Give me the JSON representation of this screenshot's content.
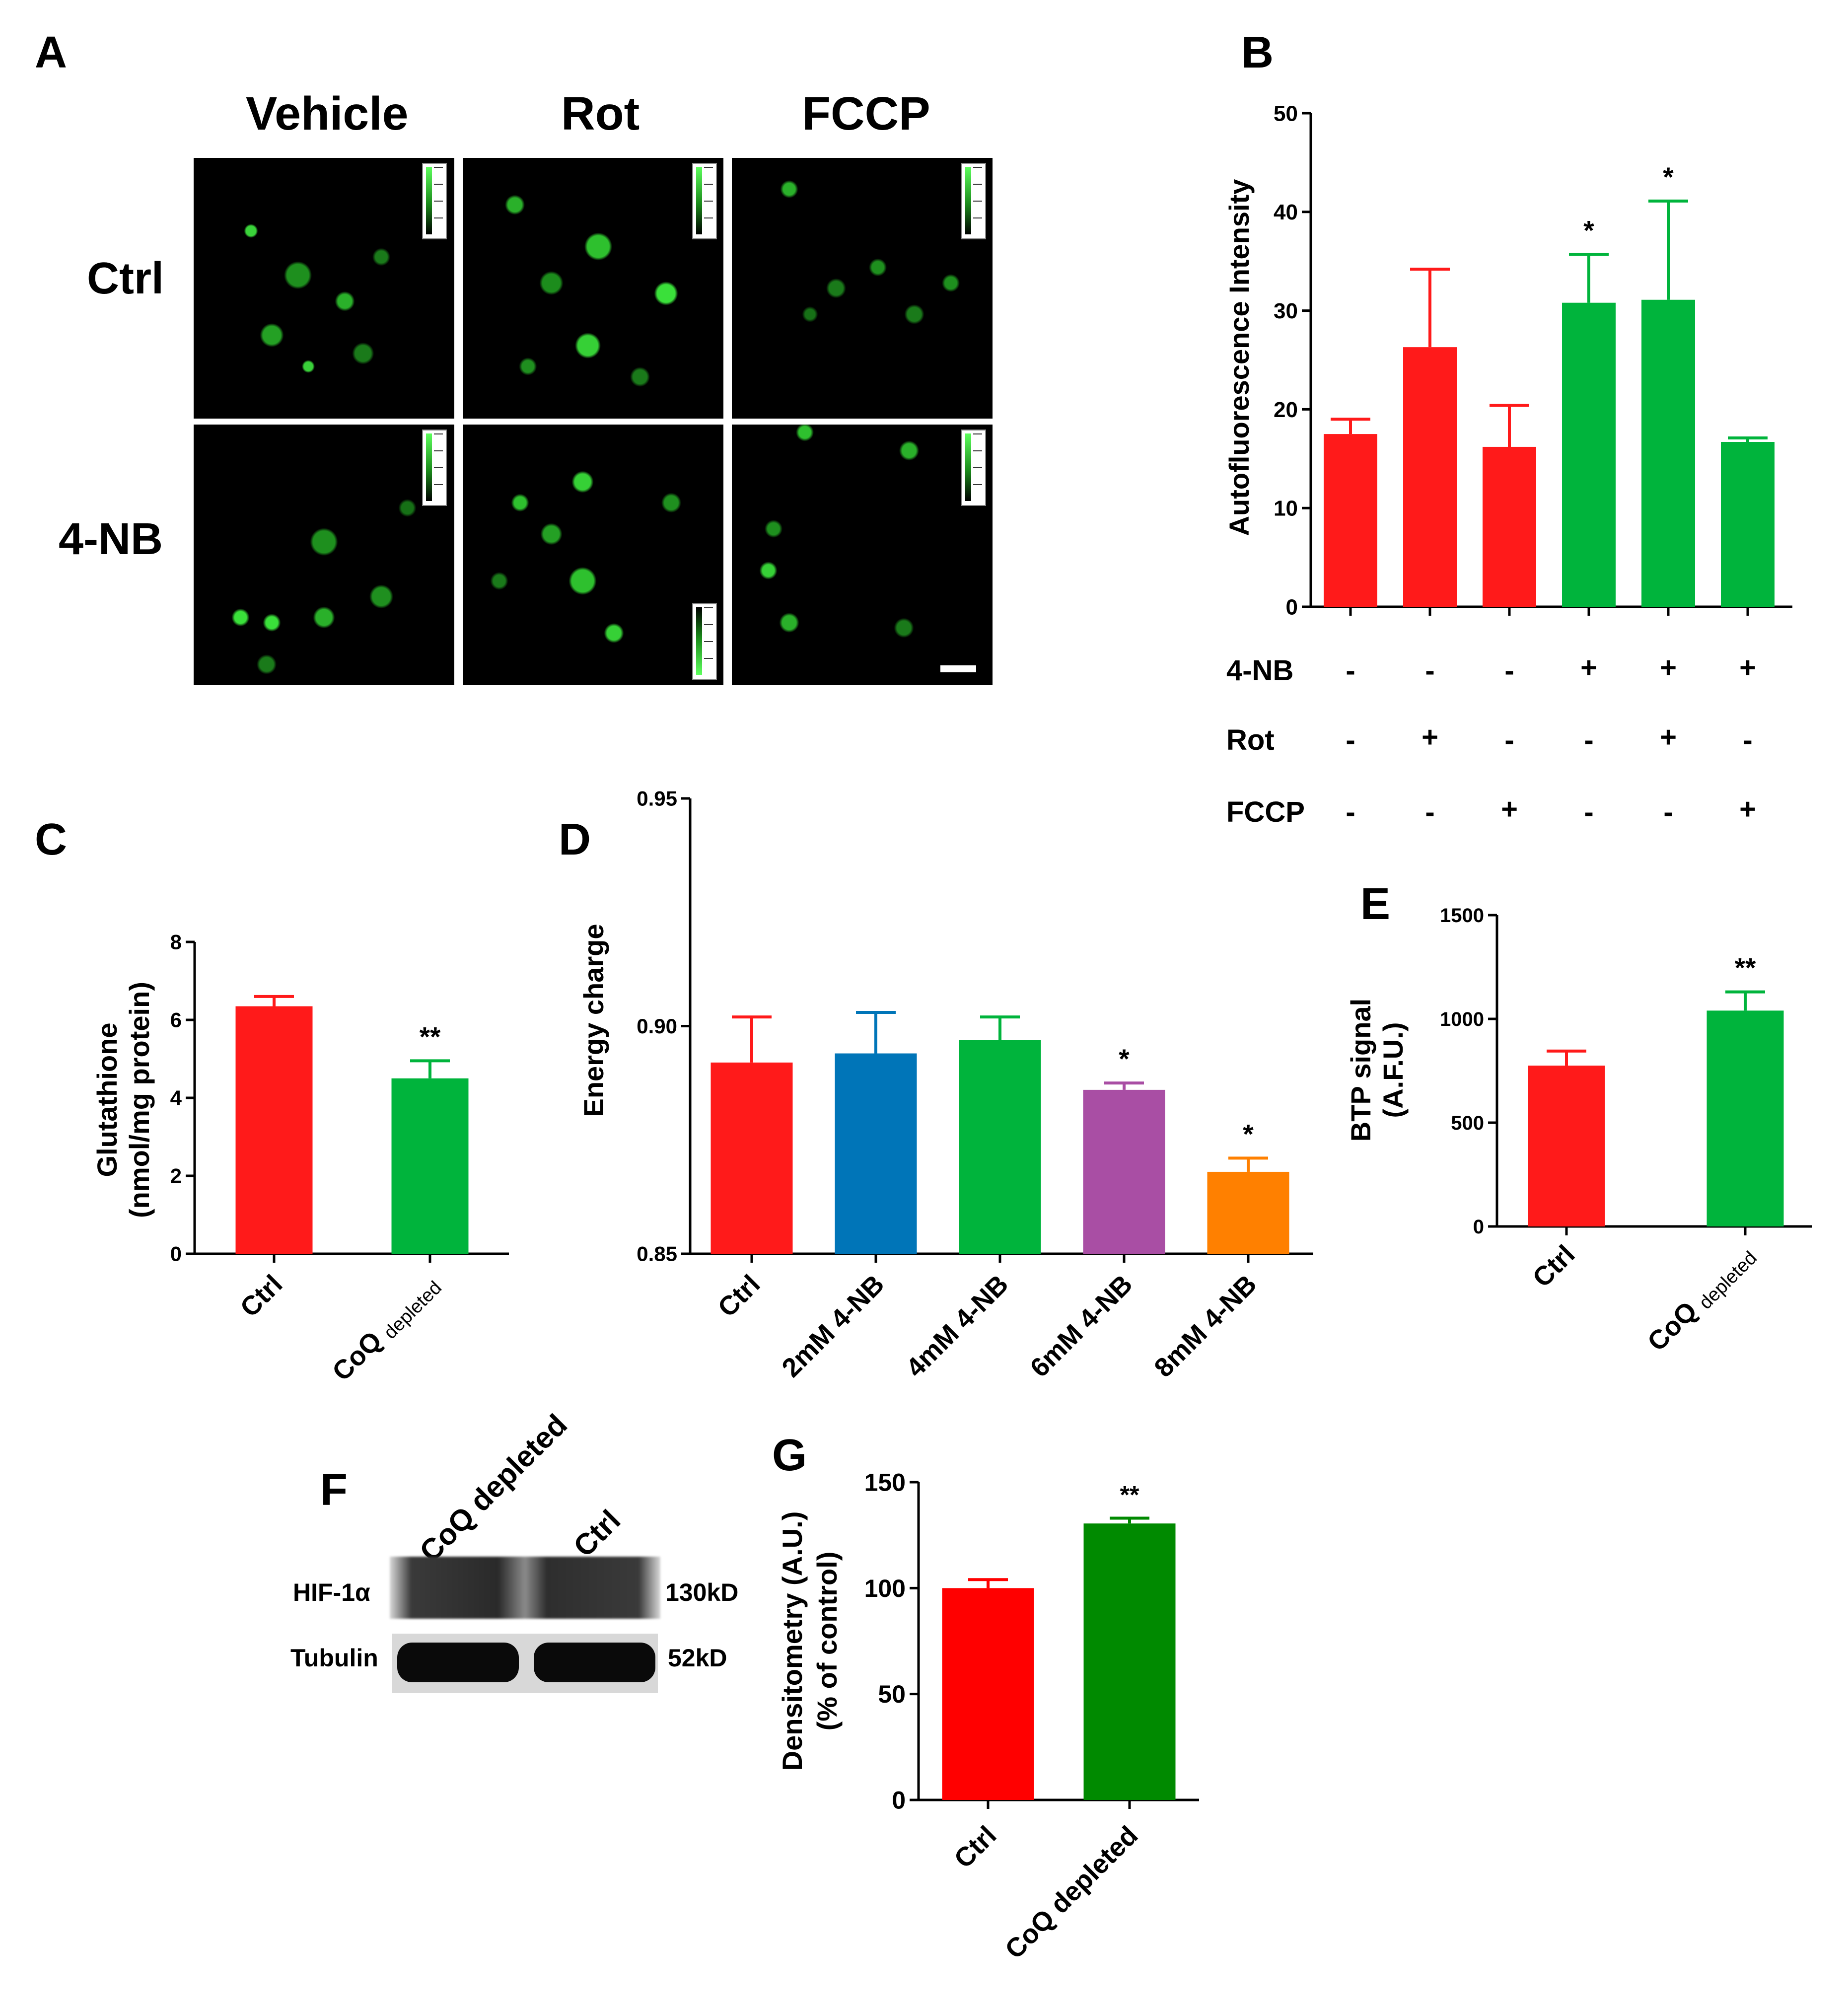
{
  "panels": {
    "A": "A",
    "B": "B",
    "C": "C",
    "D": "D",
    "E": "E",
    "F": "F",
    "G": "G"
  },
  "panel_a": {
    "columns": [
      "Vehicle",
      "Rot",
      "FCCP"
    ],
    "rows": [
      "Ctrl",
      "4-NB"
    ]
  },
  "panel_b_conditions": {
    "row_labels": [
      "4-NB",
      "Rot",
      "FCCP"
    ],
    "signs": [
      [
        "-",
        "-",
        "-",
        "+",
        "+",
        "+"
      ],
      [
        "-",
        "+",
        "-",
        "-",
        "+",
        "-"
      ],
      [
        "-",
        "-",
        "+",
        "-",
        "-",
        "+"
      ]
    ]
  },
  "panel_f": {
    "lane_labels": [
      "CoQ depleted",
      "Ctrl"
    ],
    "bands": [
      "HIF-1α",
      "Tubulin"
    ],
    "sizes": [
      "130kD",
      "52kD"
    ]
  },
  "chart_data": [
    {
      "panel": "B",
      "type": "bar",
      "ylabel": "Autofluorescence Intensity",
      "ylim": [
        0,
        50
      ],
      "yticks": [
        0,
        10,
        20,
        30,
        40,
        50
      ],
      "values": [
        17.5,
        26.3,
        16.2,
        30.8,
        31.1,
        16.7
      ],
      "errors": [
        1.5,
        7.9,
        4.2,
        4.9,
        10.0,
        0.4
      ],
      "colors": [
        "#ff1a1a",
        "#ff1a1a",
        "#ff1a1a",
        "#00b43c",
        "#00b43c",
        "#00b43c"
      ],
      "significance": [
        "",
        "",
        "",
        "*",
        "*",
        ""
      ]
    },
    {
      "panel": "C",
      "type": "bar",
      "categories": [
        "Ctrl",
        "CoQ depleted"
      ],
      "ylabel": "Glutathione",
      "ylabel2": "(nmol/mg protein)",
      "ylim": [
        0,
        8
      ],
      "yticks": [
        0,
        2,
        4,
        6,
        8
      ],
      "values": [
        6.35,
        4.5
      ],
      "errors": [
        0.25,
        0.45
      ],
      "colors": [
        "#ff1a1a",
        "#00b43c"
      ],
      "significance": [
        "",
        "**"
      ]
    },
    {
      "panel": "D",
      "type": "bar",
      "categories": [
        "Ctrl",
        "2mM 4-NB",
        "4mM 4-NB",
        "6mM 4-NB",
        "8mM 4-NB"
      ],
      "ylabel": "Energy charge",
      "ylim": [
        0.85,
        0.95
      ],
      "yticks": [
        "0.85",
        "0.90",
        "0.95"
      ],
      "values": [
        0.892,
        0.894,
        0.897,
        0.886,
        0.868
      ],
      "errors": [
        0.01,
        0.009,
        0.005,
        0.0015,
        0.003
      ],
      "colors": [
        "#ff1a1a",
        "#0075b8",
        "#00b43c",
        "#a94ea4",
        "#ff8000"
      ],
      "significance": [
        "",
        "",
        "",
        "*",
        "*"
      ]
    },
    {
      "panel": "E",
      "type": "bar",
      "categories": [
        "Ctrl",
        "CoQ depleted"
      ],
      "ylabel": "BTP signal",
      "ylabel2": "(A.F.U.)",
      "ylim": [
        0,
        1500
      ],
      "yticks": [
        0,
        500,
        1000,
        1500
      ],
      "values": [
        775,
        1040
      ],
      "errors": [
        70,
        90
      ],
      "colors": [
        "#ff1a1a",
        "#00b43c"
      ],
      "significance": [
        "",
        "**"
      ]
    },
    {
      "panel": "G",
      "type": "bar",
      "categories": [
        "Ctrl",
        "CoQ depleted"
      ],
      "ylabel": "Densitometry (A.U.)",
      "ylabel2": "(% of control)",
      "ylim": [
        0,
        150
      ],
      "yticks": [
        0,
        50,
        100,
        150
      ],
      "values": [
        100,
        130.5
      ],
      "errors": [
        4,
        2.5
      ],
      "colors": [
        "#ff0000",
        "#008a00"
      ],
      "significance": [
        "",
        "**"
      ]
    }
  ]
}
